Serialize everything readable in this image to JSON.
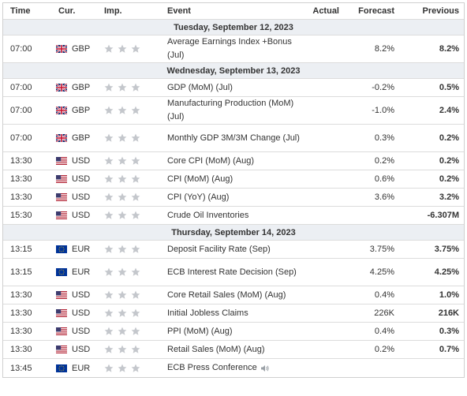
{
  "headers": {
    "time": "Time",
    "currency": "Cur.",
    "importance": "Imp.",
    "event": "Event",
    "actual": "Actual",
    "forecast": "Forecast",
    "previous": "Previous"
  },
  "colors": {
    "star_inactive": "#c4c7cc",
    "date_row_bg": "#eceff3",
    "border": "#dcdcdc"
  },
  "icons": {
    "gbp": "uk-flag-icon",
    "usd": "us-flag-icon",
    "eur": "eu-flag-icon",
    "importance": "star-icon",
    "speech": "speaker-icon"
  },
  "dates": [
    "Tuesday, September 12, 2023",
    "Wednesday, September 13, 2023",
    "Thursday, September 14, 2023"
  ],
  "events": [
    {
      "time": "07:00",
      "currency": "GBP",
      "event": "Average Earnings Index +Bonus (Jul)",
      "actual": "",
      "forecast": "8.2%",
      "previous": "8.2%"
    },
    {
      "time": "07:00",
      "currency": "GBP",
      "event": "GDP (MoM) (Jul)",
      "actual": "",
      "forecast": "-0.2%",
      "previous": "0.5%"
    },
    {
      "time": "07:00",
      "currency": "GBP",
      "event": "Manufacturing Production (MoM) (Jul)",
      "actual": "",
      "forecast": "-1.0%",
      "previous": "2.4%"
    },
    {
      "time": "07:00",
      "currency": "GBP",
      "event": "Monthly GDP 3M/3M Change (Jul)",
      "actual": "",
      "forecast": "0.3%",
      "previous": "0.2%"
    },
    {
      "time": "13:30",
      "currency": "USD",
      "event": "Core CPI (MoM) (Aug)",
      "actual": "",
      "forecast": "0.2%",
      "previous": "0.2%"
    },
    {
      "time": "13:30",
      "currency": "USD",
      "event": "CPI (MoM) (Aug)",
      "actual": "",
      "forecast": "0.6%",
      "previous": "0.2%"
    },
    {
      "time": "13:30",
      "currency": "USD",
      "event": "CPI (YoY) (Aug)",
      "actual": "",
      "forecast": "3.6%",
      "previous": "3.2%"
    },
    {
      "time": "15:30",
      "currency": "USD",
      "event": "Crude Oil Inventories",
      "actual": "",
      "forecast": "",
      "previous": "-6.307M"
    },
    {
      "time": "13:15",
      "currency": "EUR",
      "event": "Deposit Facility Rate (Sep)",
      "actual": "",
      "forecast": "3.75%",
      "previous": "3.75%"
    },
    {
      "time": "13:15",
      "currency": "EUR",
      "event": "ECB Interest Rate Decision (Sep)",
      "actual": "",
      "forecast": "4.25%",
      "previous": "4.25%"
    },
    {
      "time": "13:30",
      "currency": "USD",
      "event": "Core Retail Sales (MoM) (Aug)",
      "actual": "",
      "forecast": "0.4%",
      "previous": "1.0%"
    },
    {
      "time": "13:30",
      "currency": "USD",
      "event": "Initial Jobless Claims",
      "actual": "",
      "forecast": "226K",
      "previous": "216K"
    },
    {
      "time": "13:30",
      "currency": "USD",
      "event": "PPI (MoM) (Aug)",
      "actual": "",
      "forecast": "0.4%",
      "previous": "0.3%"
    },
    {
      "time": "13:30",
      "currency": "USD",
      "event": "Retail Sales (MoM) (Aug)",
      "actual": "",
      "forecast": "0.2%",
      "previous": "0.7%"
    },
    {
      "time": "13:45",
      "currency": "EUR",
      "event": "ECB Press Conference",
      "actual": "",
      "forecast": "",
      "previous": ""
    }
  ]
}
